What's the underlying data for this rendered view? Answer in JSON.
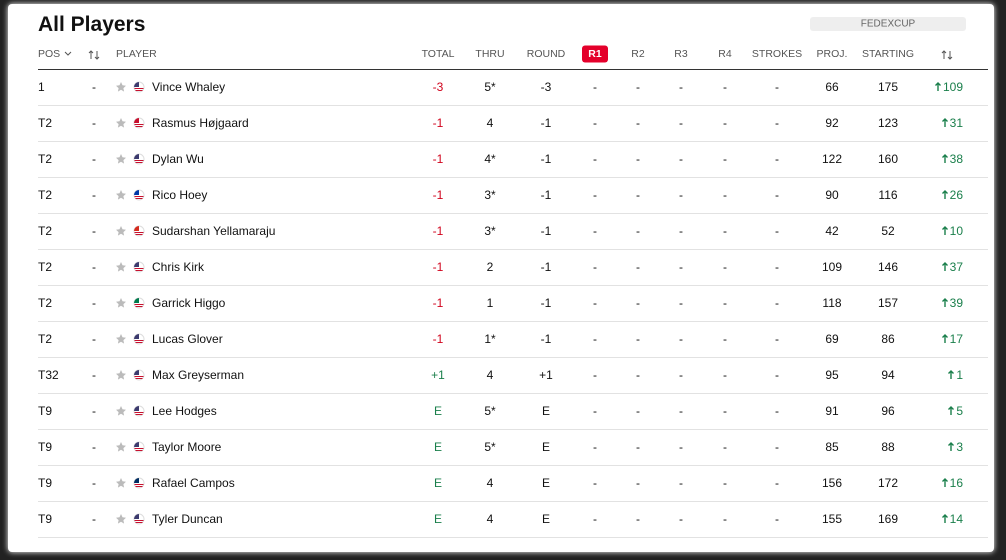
{
  "header": {
    "title": "All Players",
    "tab": "FEDEXCUP"
  },
  "table": {
    "columns": [
      "POS",
      "PLAYER",
      "TOTAL",
      "THRU",
      "ROUND",
      "R1",
      "R2",
      "R3",
      "R4",
      "STROKES",
      "PROJ.",
      "STARTING"
    ],
    "rows": [
      {
        "pos": "1",
        "move": "-",
        "name": "Vince Whaley",
        "total": "-3",
        "thru": "5*",
        "round": "-3",
        "r1": "-",
        "r2": "-",
        "r3": "-",
        "r4": "-",
        "strokes": "-",
        "proj": "66",
        "starting": "175",
        "change": "109"
      },
      {
        "pos": "T2",
        "move": "-",
        "name": "Rasmus Højgaard",
        "total": "-1",
        "thru": "4",
        "round": "-1",
        "r1": "-",
        "r2": "-",
        "r3": "-",
        "r4": "-",
        "strokes": "-",
        "proj": "92",
        "starting": "123",
        "change": "31"
      },
      {
        "pos": "T2",
        "move": "-",
        "name": "Dylan Wu",
        "total": "-1",
        "thru": "4*",
        "round": "-1",
        "r1": "-",
        "r2": "-",
        "r3": "-",
        "r4": "-",
        "strokes": "-",
        "proj": "122",
        "starting": "160",
        "change": "38"
      },
      {
        "pos": "T2",
        "move": "-",
        "name": "Rico Hoey",
        "total": "-1",
        "thru": "3*",
        "round": "-1",
        "r1": "-",
        "r2": "-",
        "r3": "-",
        "r4": "-",
        "strokes": "-",
        "proj": "90",
        "starting": "116",
        "change": "26"
      },
      {
        "pos": "T2",
        "move": "-",
        "name": "Sudarshan Yellamaraju",
        "total": "-1",
        "thru": "3*",
        "round": "-1",
        "r1": "-",
        "r2": "-",
        "r3": "-",
        "r4": "-",
        "strokes": "-",
        "proj": "42",
        "starting": "52",
        "change": "10"
      },
      {
        "pos": "T2",
        "move": "-",
        "name": "Chris Kirk",
        "total": "-1",
        "thru": "2",
        "round": "-1",
        "r1": "-",
        "r2": "-",
        "r3": "-",
        "r4": "-",
        "strokes": "-",
        "proj": "109",
        "starting": "146",
        "change": "37"
      },
      {
        "pos": "T2",
        "move": "-",
        "name": "Garrick Higgo",
        "total": "-1",
        "thru": "1",
        "round": "-1",
        "r1": "-",
        "r2": "-",
        "r3": "-",
        "r4": "-",
        "strokes": "-",
        "proj": "118",
        "starting": "157",
        "change": "39"
      },
      {
        "pos": "T2",
        "move": "-",
        "name": "Lucas Glover",
        "total": "-1",
        "thru": "1*",
        "round": "-1",
        "r1": "-",
        "r2": "-",
        "r3": "-",
        "r4": "-",
        "strokes": "-",
        "proj": "69",
        "starting": "86",
        "change": "17"
      },
      {
        "pos": "T32",
        "move": "-",
        "name": "Max Greyserman",
        "total": "+1",
        "thru": "4",
        "round": "+1",
        "r1": "-",
        "r2": "-",
        "r3": "-",
        "r4": "-",
        "strokes": "-",
        "proj": "95",
        "starting": "94",
        "change": "1"
      },
      {
        "pos": "T9",
        "move": "-",
        "name": "Lee Hodges",
        "total": "E",
        "thru": "5*",
        "round": "E",
        "r1": "-",
        "r2": "-",
        "r3": "-",
        "r4": "-",
        "strokes": "-",
        "proj": "91",
        "starting": "96",
        "change": "5"
      },
      {
        "pos": "T9",
        "move": "-",
        "name": "Taylor Moore",
        "total": "E",
        "thru": "5*",
        "round": "E",
        "r1": "-",
        "r2": "-",
        "r3": "-",
        "r4": "-",
        "strokes": "-",
        "proj": "85",
        "starting": "88",
        "change": "3"
      },
      {
        "pos": "T9",
        "move": "-",
        "name": "Rafael Campos",
        "total": "E",
        "thru": "4",
        "round": "E",
        "r1": "-",
        "r2": "-",
        "r3": "-",
        "r4": "-",
        "strokes": "-",
        "proj": "156",
        "starting": "172",
        "change": "16"
      },
      {
        "pos": "T9",
        "move": "-",
        "name": "Tyler Duncan",
        "total": "E",
        "thru": "4",
        "round": "E",
        "r1": "-",
        "r2": "-",
        "r3": "-",
        "r4": "-",
        "strokes": "-",
        "proj": "155",
        "starting": "169",
        "change": "14"
      }
    ]
  }
}
